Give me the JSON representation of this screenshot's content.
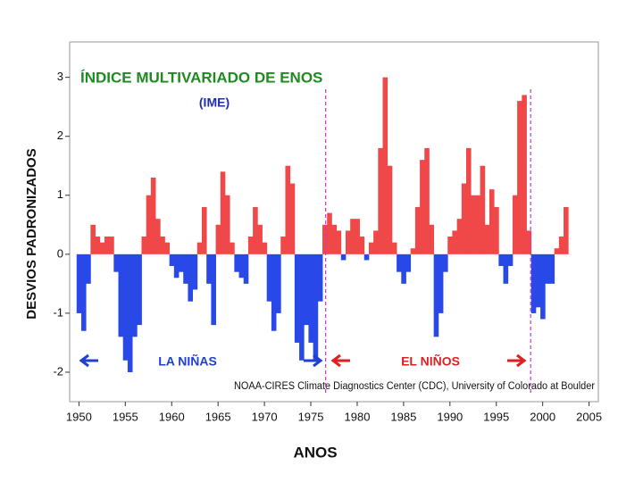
{
  "chart_data": {
    "type": "bar",
    "title": "ÍNDICE MULTIVARIADO DE ENOS",
    "subtitle": "(IME)",
    "y_label": "DESVIOS PADRONIZADOS",
    "x_label": "ANOS",
    "annotations": [
      "LA NIÑAS",
      "EL NIÑOS"
    ],
    "source": "NOAA-CIRES Climate Diagnostics Center (CDC), University of Colorado at Boulder",
    "vlines": [
      1976.6,
      1998.7
    ],
    "positive_color": "#f04848",
    "negative_color": "#2848e8",
    "xlim": [
      1949,
      2006
    ],
    "ylim": [
      -2.5,
      3.6
    ],
    "xticks": [
      1950,
      1955,
      1960,
      1965,
      1970,
      1975,
      1980,
      1985,
      1990,
      1995,
      2000,
      2005
    ],
    "yticks": [
      -2,
      -1,
      0,
      1,
      2,
      3
    ],
    "x": [
      1950,
      1950.5,
      1951,
      1951.5,
      1952,
      1952.5,
      1953,
      1953.5,
      1954,
      1954.5,
      1955,
      1955.5,
      1956,
      1956.5,
      1957,
      1957.5,
      1958,
      1958.5,
      1959,
      1959.5,
      1960,
      1960.5,
      1961,
      1961.5,
      1962,
      1962.5,
      1963,
      1963.5,
      1964,
      1964.5,
      1965,
      1965.5,
      1966,
      1966.5,
      1967,
      1967.5,
      1968,
      1968.5,
      1969,
      1969.5,
      1970,
      1970.5,
      1971,
      1971.5,
      1972,
      1972.5,
      1973,
      1973.5,
      1974,
      1974.5,
      1975,
      1975.5,
      1976,
      1976.5,
      1977,
      1977.5,
      1978,
      1978.5,
      1979,
      1979.5,
      1980,
      1980.5,
      1981,
      1981.5,
      1982,
      1982.5,
      1983,
      1983.5,
      1984,
      1984.5,
      1985,
      1985.5,
      1986,
      1986.5,
      1987,
      1987.5,
      1988,
      1988.5,
      1989,
      1989.5,
      1990,
      1990.5,
      1991,
      1991.5,
      1992,
      1992.5,
      1993,
      1993.5,
      1994,
      1994.5,
      1995,
      1995.5,
      1996,
      1996.5,
      1997,
      1997.5,
      1998,
      1998.5,
      1999,
      1999.5,
      2000,
      2000.5,
      2001,
      2001.5,
      2002,
      2002.5
    ],
    "values": [
      -1.0,
      -1.3,
      -0.5,
      0.5,
      0.3,
      0.2,
      0.3,
      0.3,
      -0.3,
      -1.4,
      -1.8,
      -2.0,
      -1.4,
      -1.2,
      0.3,
      1.0,
      1.3,
      0.6,
      0.3,
      0.2,
      -0.2,
      -0.4,
      -0.3,
      -0.5,
      -0.8,
      -0.6,
      0.2,
      0.8,
      -0.5,
      -1.2,
      0.5,
      1.4,
      1.0,
      0.2,
      -0.3,
      -0.4,
      -0.5,
      0.3,
      0.8,
      0.5,
      0.2,
      -0.8,
      -1.3,
      -1.0,
      0.3,
      1.5,
      1.2,
      -1.5,
      -1.8,
      -1.2,
      -1.5,
      -1.8,
      -0.8,
      0.5,
      0.7,
      0.5,
      0.4,
      -0.1,
      0.4,
      0.6,
      0.6,
      0.3,
      -0.1,
      0.2,
      0.4,
      1.8,
      3.0,
      1.5,
      0.2,
      -0.3,
      -0.5,
      -0.3,
      0.1,
      0.8,
      1.6,
      1.8,
      0.5,
      -1.4,
      -1.0,
      -0.3,
      0.3,
      0.4,
      0.6,
      1.2,
      1.8,
      1.0,
      1.0,
      1.5,
      0.5,
      1.1,
      0.8,
      -0.2,
      -0.5,
      -0.2,
      1.0,
      2.6,
      2.7,
      0.4,
      -1.0,
      -0.9,
      -1.1,
      -0.5,
      -0.5,
      0.1,
      0.3,
      0.8
    ]
  }
}
